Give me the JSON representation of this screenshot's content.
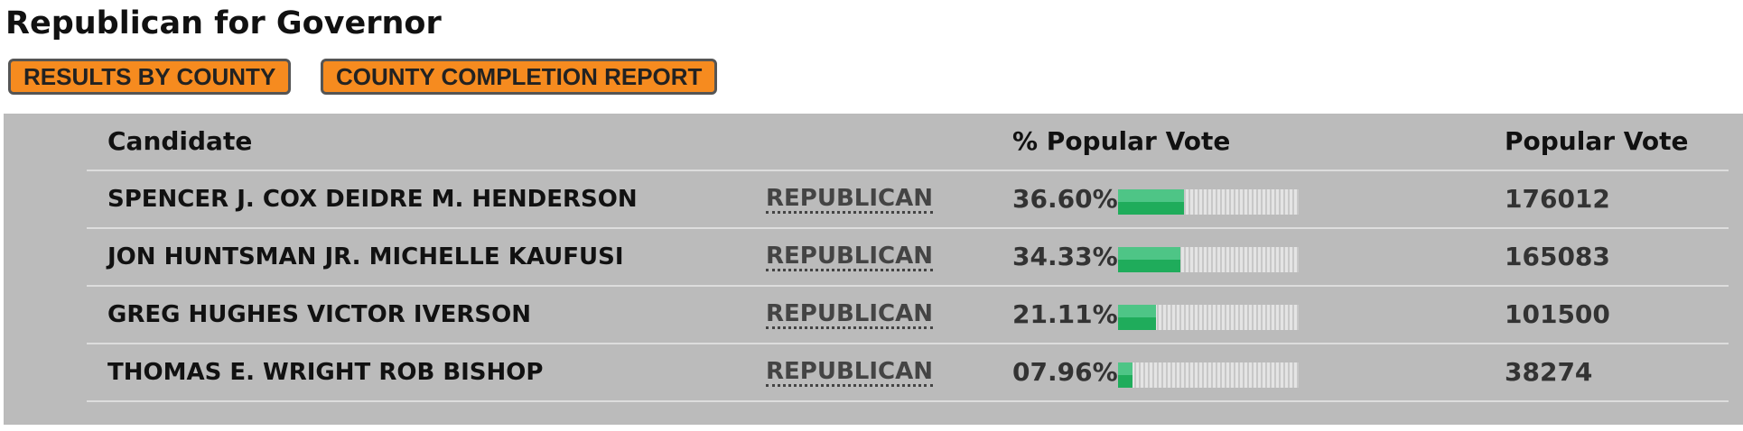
{
  "header": {
    "title": "Republican for Governor",
    "buttons": [
      "RESULTS BY COUNTY",
      "COUNTY COMPLETION REPORT"
    ]
  },
  "table": {
    "columns": [
      "Candidate",
      "% Popular Vote",
      "Popular Vote"
    ],
    "rows": [
      {
        "candidate": "SPENCER J. COX DEIDRE M. HENDERSON",
        "party": "REPUBLICAN",
        "percent": 36.6,
        "percent_label": "36.60%",
        "votes": 176012
      },
      {
        "candidate": "JON HUNTSMAN JR. MICHELLE KAUFUSI",
        "party": "REPUBLICAN",
        "percent": 34.33,
        "percent_label": "34.33%",
        "votes": 165083
      },
      {
        "candidate": "GREG HUGHES VICTOR IVERSON",
        "party": "REPUBLICAN",
        "percent": 21.11,
        "percent_label": "21.11%",
        "votes": 101500
      },
      {
        "candidate": "THOMAS E. WRIGHT ROB BISHOP",
        "party": "REPUBLICAN",
        "percent": 7.96,
        "percent_label": "07.96%",
        "votes": 38274
      }
    ]
  }
}
